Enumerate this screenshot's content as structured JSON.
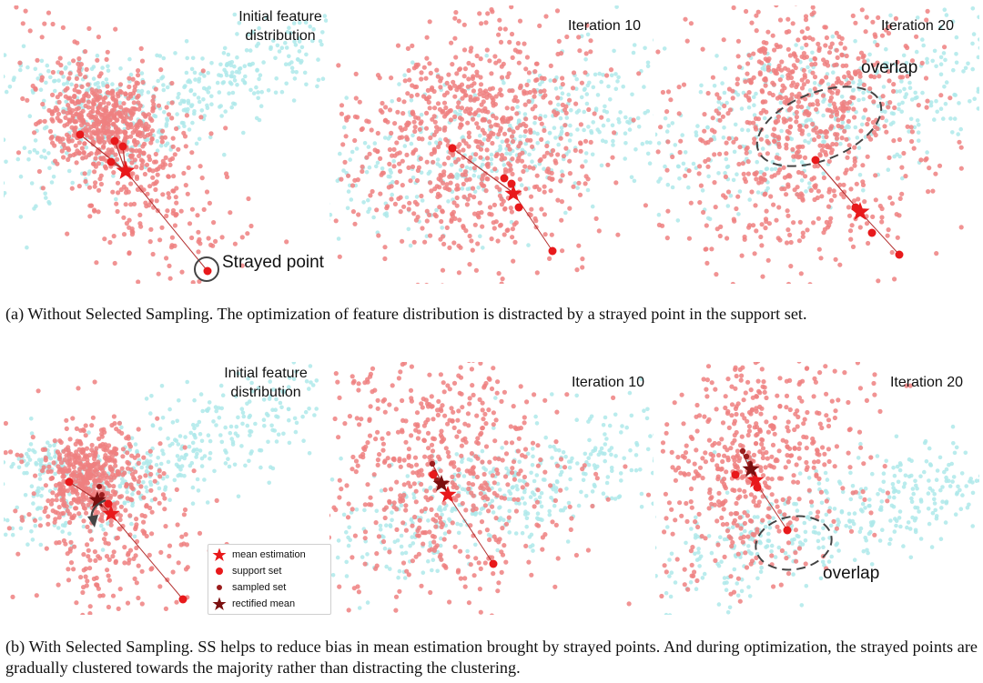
{
  "figure": {
    "colors": {
      "red_cloud": "#ee8080",
      "cyan_cloud": "#aee9ea",
      "support": "#e8191b",
      "sampled": "#9b1d1d",
      "rectified": "#7b0f0f",
      "trajectory": "#b43232",
      "ring": "#444444"
    },
    "row_a": {
      "panels": [
        {
          "title": "Initial feature\ndistribution"
        },
        {
          "title": "Iteration 10"
        },
        {
          "title": "Iteration 20"
        }
      ],
      "annotations": {
        "strayed_point": "Strayed point",
        "overlap": "overlap"
      },
      "caption": "(a) Without Selected Sampling. The optimization of feature distribution is distracted by a strayed point in the support set."
    },
    "row_b": {
      "panels": [
        {
          "title": "Initial feature\ndistribution"
        },
        {
          "title": "Iteration 10"
        },
        {
          "title": "Iteration 20"
        }
      ],
      "annotations": {
        "overlap": "overlap"
      },
      "caption": "(b) With Selected Sampling. SS helps to reduce bias in mean estimation brought by strayed points. And during optimization, the strayed points are gradually clustered towards the majority rather than distracting the clustering."
    },
    "legend": {
      "items": [
        {
          "label": "mean estimation",
          "marker": "star",
          "color": "#e8191b"
        },
        {
          "label": "support set",
          "marker": "dot",
          "color": "#e8191b"
        },
        {
          "label": "sampled set",
          "marker": "small-dot",
          "color": "#9b1d1d"
        },
        {
          "label": "rectified mean",
          "marker": "star",
          "color": "#7b0f0f"
        }
      ]
    }
  }
}
